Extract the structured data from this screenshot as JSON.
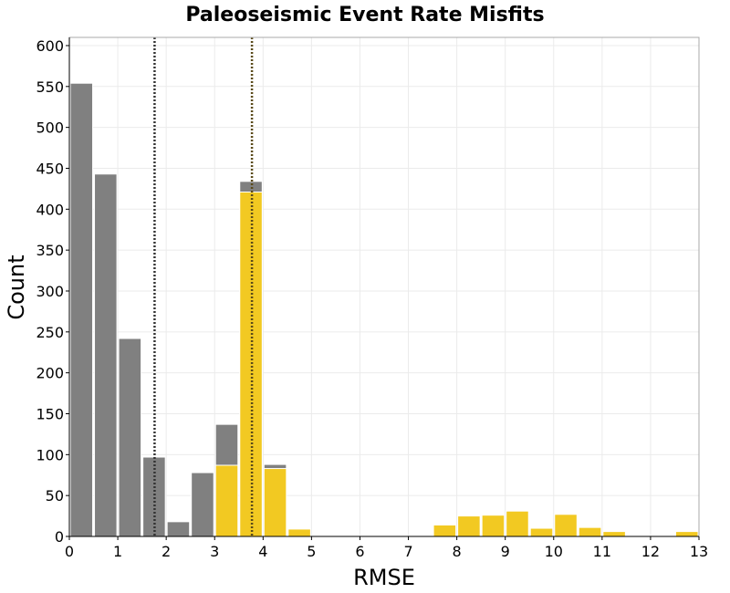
{
  "chart_data": {
    "type": "bar",
    "title": "Paleoseismic Event Rate Misfits",
    "xlabel": "RMSE",
    "ylabel": "Count",
    "xlim": [
      0,
      13
    ],
    "ylim": [
      0,
      610
    ],
    "grid": true,
    "bin_width": 0.5,
    "x_ticks": [
      "0",
      "1",
      "2",
      "3",
      "4",
      "5",
      "6",
      "7",
      "8",
      "9",
      "10",
      "11",
      "12",
      "13"
    ],
    "y_ticks": [
      "0",
      "50",
      "100",
      "150",
      "200",
      "250",
      "300",
      "350",
      "400",
      "450",
      "500",
      "550",
      "600"
    ],
    "series": [
      {
        "color": "#808080",
        "bin_starts": [
          0,
          0.5,
          1.0,
          1.5,
          2.0,
          2.5,
          3.0,
          3.5,
          4.0
        ],
        "values": [
          554,
          443,
          242,
          97,
          18,
          78,
          137,
          434,
          88
        ]
      },
      {
        "color": "#f2c922",
        "bin_starts": [
          3.0,
          3.5,
          4.0,
          4.5,
          7.5,
          8.0,
          8.5,
          9.0,
          9.5,
          10.0,
          10.5,
          11.0,
          12.5
        ],
        "values": [
          87,
          421,
          83,
          9,
          14,
          25,
          26,
          31,
          10,
          27,
          11,
          6,
          6
        ]
      }
    ],
    "vlines": [
      {
        "x": 1.76,
        "color": "#333333",
        "style": "dotted"
      },
      {
        "x": 3.77,
        "color": "#5a4a1a",
        "style": "dotted"
      }
    ]
  }
}
